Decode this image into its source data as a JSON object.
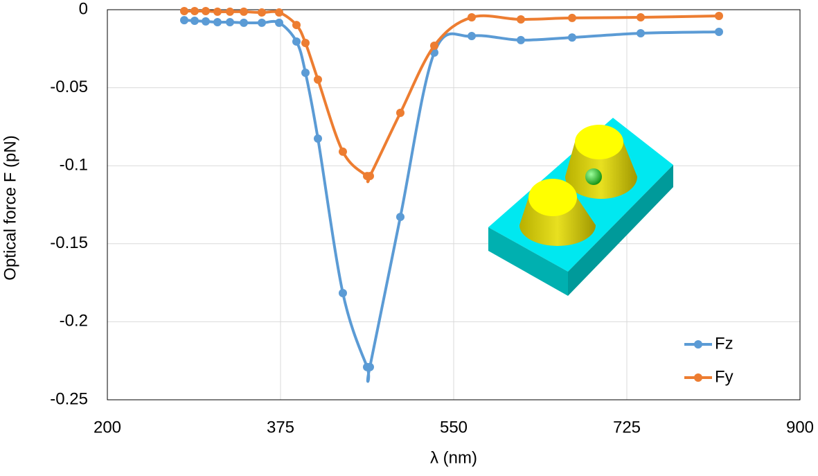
{
  "chart_data": {
    "type": "line",
    "x_label": "λ (nm)",
    "y_label": "Optical force F (pN)",
    "x": [
      277.7,
      288.2,
      299.4,
      311.3,
      323.9,
      337.9,
      356.1,
      373.6,
      391.1,
      400.2,
      412.8,
      438,
      462.5,
      465.3,
      496.1,
      530.4,
      568.2,
      617.9,
      669.7,
      739,
      818.1
    ],
    "series": [
      {
        "name": "Fz",
        "color": "#5b9bd5",
        "values": [
          -0.0067,
          -0.0071,
          -0.0075,
          -0.008,
          -0.008,
          -0.0084,
          -0.0084,
          -0.0084,
          -0.0204,
          -0.0404,
          -0.0826,
          -0.1816,
          -0.229,
          -0.229,
          -0.1328,
          -0.0275,
          -0.0169,
          -0.0195,
          -0.0178,
          -0.0151,
          -0.0142
        ]
      },
      {
        "name": "Fy",
        "color": "#ed7d31",
        "values": [
          -0.0009,
          -0.0009,
          -0.0009,
          -0.0013,
          -0.0013,
          -0.0013,
          -0.0018,
          -0.0018,
          -0.0098,
          -0.0213,
          -0.0448,
          -0.091,
          -0.1066,
          -0.1066,
          -0.0661,
          -0.0231,
          -0.0049,
          -0.0062,
          -0.0053,
          -0.0049,
          -0.004
        ]
      }
    ],
    "xlim": [
      200,
      900
    ],
    "xticks": [
      200,
      375,
      550,
      725,
      900
    ],
    "ylim": [
      -0.25,
      0
    ],
    "yticks": [
      -0.25,
      -0.2,
      -0.15,
      -0.1,
      -0.05,
      0
    ],
    "grid": true,
    "legend": "lower right"
  }
}
